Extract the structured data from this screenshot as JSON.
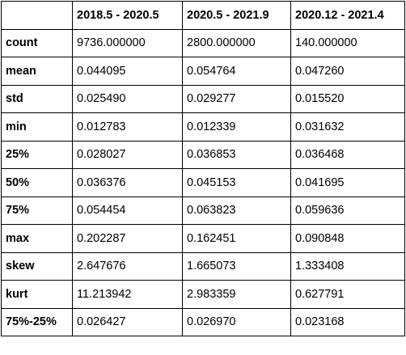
{
  "table": {
    "corner": "",
    "columns": [
      "2018.5 - 2020.5",
      "2020.5 - 2021.9",
      "2020.12 - 2021.4"
    ],
    "rows": [
      {
        "label": "count",
        "values": [
          "9736.000000",
          "2800.000000",
          "140.000000"
        ]
      },
      {
        "label": "mean",
        "values": [
          "0.044095",
          "0.054764",
          "0.047260"
        ]
      },
      {
        "label": "std",
        "values": [
          "0.025490",
          "0.029277",
          "0.015520"
        ]
      },
      {
        "label": "min",
        "values": [
          "0.012783",
          "0.012339",
          "0.031632"
        ]
      },
      {
        "label": "25%",
        "values": [
          "0.028027",
          "0.036853",
          "0.036468"
        ]
      },
      {
        "label": "50%",
        "values": [
          "0.036376",
          "0.045153",
          "0.041695"
        ]
      },
      {
        "label": "75%",
        "values": [
          "0.054454",
          "0.063823",
          "0.059636"
        ]
      },
      {
        "label": "max",
        "values": [
          "0.202287",
          "0.162451",
          "0.090848"
        ]
      },
      {
        "label": "skew",
        "values": [
          "2.647676",
          "1.665073",
          "1.333408"
        ]
      },
      {
        "label": "kurt",
        "values": [
          "11.213942",
          "2.983359",
          "0.627791"
        ]
      },
      {
        "label": "75%-25%",
        "values": [
          "0.026427",
          "0.026970",
          "0.023168"
        ]
      }
    ]
  }
}
